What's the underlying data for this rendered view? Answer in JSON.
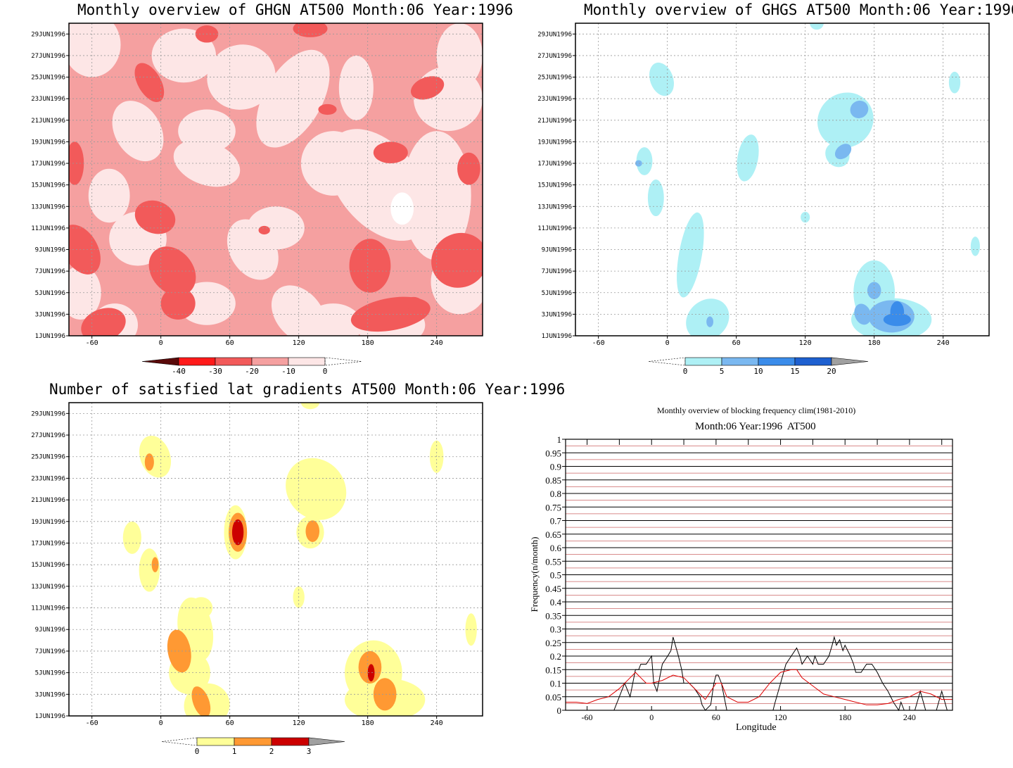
{
  "chart_data": [
    {
      "id": "ghgn",
      "type": "heatmap",
      "title": "Monthly overview of GHGN AT500 Month:06 Year:1996",
      "xticks": [
        "-60",
        "0",
        "60",
        "120",
        "180",
        "240"
      ],
      "xtick_values": [
        -60,
        0,
        60,
        120,
        180,
        240
      ],
      "xlim": [
        -80,
        280
      ],
      "yticks": [
        "1JUN1996",
        "3JUN1996",
        "5JUN1996",
        "7JUN1996",
        "9JUN1996",
        "11JUN1996",
        "13JUN1996",
        "15JUN1996",
        "17JUN1996",
        "19JUN1996",
        "21JUN1996",
        "23JUN1996",
        "25JUN1996",
        "27JUN1996",
        "29JUN1996"
      ],
      "ylim": [
        1,
        30
      ],
      "colorbar": {
        "labels": [
          "-40",
          "-30",
          "-20",
          "-10",
          "0"
        ],
        "colors": [
          "#5a0a0a",
          "#ff1a1a",
          "#f25a5a",
          "#f5a0a0",
          "#fde6e6"
        ]
      },
      "levels": {
        "background": "#fde6e6",
        "mid": "#f5a0a0",
        "high": "#f25a5a"
      }
    },
    {
      "id": "ghgs",
      "type": "heatmap",
      "title": "Monthly overview of GHGS AT500 Month:06 Year:1996",
      "xticks": [
        "-60",
        "0",
        "60",
        "120",
        "180",
        "240"
      ],
      "xtick_values": [
        -60,
        0,
        60,
        120,
        180,
        240
      ],
      "xlim": [
        -80,
        280
      ],
      "yticks": [
        "1JUN1996",
        "3JUN1996",
        "5JUN1996",
        "7JUN1996",
        "9JUN1996",
        "11JUN1996",
        "13JUN1996",
        "15JUN1996",
        "17JUN1996",
        "19JUN1996",
        "21JUN1996",
        "23JUN1996",
        "25JUN1996",
        "27JUN1996",
        "29JUN1996"
      ],
      "ylim": [
        1,
        30
      ],
      "colorbar": {
        "labels": [
          "0",
          "5",
          "10",
          "15",
          "20"
        ],
        "colors": [
          "#aef0f5",
          "#7ab8f0",
          "#3a8cea",
          "#1e60d0",
          "#a0a0a0"
        ]
      }
    },
    {
      "id": "lat",
      "type": "heatmap",
      "title": "Number of satisfied lat gradients AT500 Month:06 Year:1996",
      "xticks": [
        "-60",
        "0",
        "60",
        "120",
        "180",
        "240"
      ],
      "xtick_values": [
        -60,
        0,
        60,
        120,
        180,
        240
      ],
      "xlim": [
        -80,
        280
      ],
      "yticks": [
        "1JUN1996",
        "3JUN1996",
        "5JUN1996",
        "7JUN1996",
        "9JUN1996",
        "11JUN1996",
        "13JUN1996",
        "15JUN1996",
        "17JUN1996",
        "19JUN1996",
        "21JUN1996",
        "23JUN1996",
        "25JUN1996",
        "27JUN1996",
        "29JUN1996"
      ],
      "ylim": [
        1,
        30
      ],
      "colorbar": {
        "labels": [
          "0",
          "1",
          "2",
          "3"
        ],
        "colors": [
          "#ffff99",
          "#ff9933",
          "#cc0000",
          "#a0a0a0"
        ]
      }
    },
    {
      "id": "freq",
      "type": "line",
      "title": "Monthly overview of blocking frequency clim(1981-2010)",
      "subtitle": "Month:06 Year:1996  AT500",
      "xlabel": "Longitude",
      "ylabel": "Frequency(n/month)",
      "xlim": [
        -80,
        280
      ],
      "ylim": [
        0,
        1
      ],
      "xticks": [
        "-60",
        "0",
        "60",
        "120",
        "180",
        "240"
      ],
      "xtick_values": [
        -60,
        0,
        60,
        120,
        180,
        240
      ],
      "yticks": [
        "0",
        "0.05",
        "0.1",
        "0.15",
        "0.2",
        "0.25",
        "0.3",
        "0.35",
        "0.4",
        "0.45",
        "0.5",
        "0.55",
        "0.6",
        "0.65",
        "0.7",
        "0.75",
        "0.8",
        "0.85",
        "0.9",
        "0.95",
        "1"
      ],
      "ytick_values": [
        0,
        0.05,
        0.1,
        0.15,
        0.2,
        0.25,
        0.3,
        0.35,
        0.4,
        0.45,
        0.5,
        0.55,
        0.6,
        0.65,
        0.7,
        0.75,
        0.8,
        0.85,
        0.9,
        0.95,
        1
      ],
      "series": [
        {
          "color": "#000000",
          "x": [
            -80,
            -35,
            -30,
            -25,
            -20,
            -15,
            -12,
            -10,
            -5,
            0,
            2,
            5,
            10,
            15,
            18,
            20,
            25,
            28,
            30,
            35,
            40,
            45,
            47,
            50,
            55,
            58,
            60,
            62,
            65,
            70,
            72,
            75,
            78,
            80,
            85,
            90,
            95,
            100,
            105,
            110,
            113,
            115,
            120,
            125,
            130,
            135,
            138,
            140,
            145,
            150,
            152,
            155,
            160,
            165,
            168,
            170,
            172,
            175,
            178,
            180,
            185,
            188,
            190,
            195,
            200,
            205,
            210,
            215,
            220,
            225,
            230,
            232,
            235,
            240,
            245,
            250,
            255,
            260,
            265,
            270,
            275
          ],
          "y": [
            0,
            0,
            0.05,
            0.1,
            0.05,
            0.15,
            0.15,
            0.17,
            0.17,
            0.2,
            0.1,
            0.07,
            0.17,
            0.2,
            0.22,
            0.27,
            0.2,
            0.15,
            0.1,
            0.1,
            0.08,
            0.05,
            0.02,
            0.0,
            0.02,
            0.1,
            0.13,
            0.13,
            0.1,
            0.0,
            0.0,
            0.0,
            0.0,
            0,
            0,
            0,
            0,
            0,
            0,
            0,
            0.0,
            0.03,
            0.1,
            0.17,
            0.2,
            0.23,
            0.2,
            0.17,
            0.2,
            0.17,
            0.2,
            0.17,
            0.17,
            0.2,
            0.24,
            0.27,
            0.24,
            0.26,
            0.22,
            0.24,
            0.2,
            0.17,
            0.14,
            0.14,
            0.17,
            0.17,
            0.14,
            0.1,
            0.07,
            0.03,
            0.0,
            0.03,
            0.0,
            0.0,
            0.0,
            0.07,
            0.0,
            0.0,
            0.0,
            0.07,
            0.0
          ]
        },
        {
          "color": "#dd0000",
          "x": [
            -80,
            -70,
            -60,
            -50,
            -40,
            -30,
            -20,
            -15,
            -10,
            -5,
            0,
            10,
            20,
            30,
            40,
            50,
            60,
            65,
            70,
            80,
            90,
            100,
            110,
            120,
            130,
            135,
            140,
            150,
            160,
            170,
            180,
            190,
            200,
            210,
            220,
            230,
            240,
            250,
            260,
            270,
            280
          ],
          "y": [
            0.03,
            0.03,
            0.025,
            0.04,
            0.05,
            0.08,
            0.12,
            0.14,
            0.12,
            0.1,
            0.1,
            0.11,
            0.13,
            0.12,
            0.08,
            0.04,
            0.1,
            0.1,
            0.05,
            0.03,
            0.03,
            0.05,
            0.1,
            0.14,
            0.15,
            0.15,
            0.12,
            0.09,
            0.06,
            0.05,
            0.04,
            0.03,
            0.02,
            0.02,
            0.025,
            0.04,
            0.05,
            0.07,
            0.06,
            0.04,
            0.04
          ]
        }
      ]
    }
  ]
}
